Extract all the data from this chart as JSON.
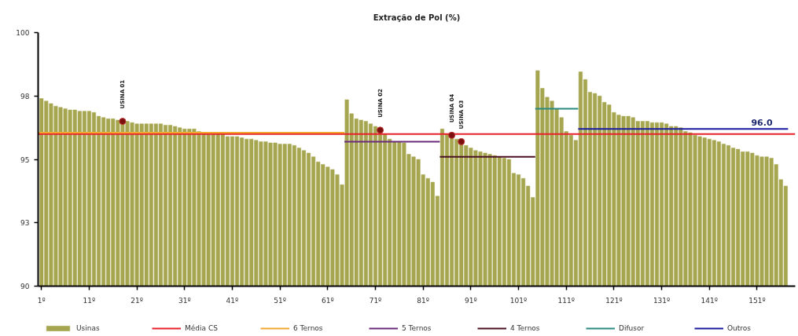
{
  "chart_data": {
    "type": "bar",
    "title": "Extração de Pol (%)",
    "x": [
      1,
      2,
      3,
      4,
      5,
      6,
      7,
      8,
      9,
      10,
      11,
      12,
      13,
      14,
      15,
      16,
      17,
      18,
      19,
      20,
      21,
      22,
      23,
      24,
      25,
      26,
      27,
      28,
      29,
      30,
      31,
      32,
      33,
      34,
      35,
      36,
      37,
      38,
      39,
      40,
      41,
      42,
      43,
      44,
      45,
      46,
      47,
      48,
      49,
      50,
      51,
      52,
      53,
      54,
      55,
      56,
      57,
      58,
      59,
      60,
      61,
      62,
      63,
      64,
      65,
      66,
      67,
      68,
      69,
      70,
      71,
      72,
      73,
      74,
      75,
      76,
      77,
      78,
      79,
      80,
      81,
      82,
      83,
      84,
      85,
      86,
      87,
      88,
      89,
      90,
      91,
      92,
      93,
      94,
      95,
      96,
      97,
      98,
      99,
      100,
      101,
      102,
      103,
      104,
      105,
      106,
      107,
      108,
      109,
      110,
      111,
      112,
      113,
      114,
      115,
      116,
      117,
      118,
      119,
      120,
      121,
      122,
      123,
      124,
      125,
      126,
      127,
      128,
      129,
      130,
      131,
      132,
      133,
      134,
      135,
      136,
      137,
      138,
      139,
      140,
      141,
      142,
      143,
      144,
      145,
      146,
      147,
      148,
      149,
      150,
      151,
      152,
      153,
      154,
      155,
      156,
      157
    ],
    "xlim": [
      0.3,
      159
    ],
    "xticks": [
      {
        "value": 1,
        "label": "1º"
      },
      {
        "value": 11,
        "label": "11º"
      },
      {
        "value": 21,
        "label": "21º"
      },
      {
        "value": 31,
        "label": "31º"
      },
      {
        "value": 41,
        "label": "41º"
      },
      {
        "value": 51,
        "label": "51º"
      },
      {
        "value": 61,
        "label": "61º"
      },
      {
        "value": 71,
        "label": "71º"
      },
      {
        "value": 81,
        "label": "81º"
      },
      {
        "value": 91,
        "label": "91º"
      },
      {
        "value": 101,
        "label": "101º"
      },
      {
        "value": 111,
        "label": "111º"
      },
      {
        "value": 121,
        "label": "121º"
      },
      {
        "value": 131,
        "label": "131º"
      },
      {
        "value": 141,
        "label": "141º"
      },
      {
        "value": 151,
        "label": "151º"
      }
    ],
    "ylim": [
      90,
      100
    ],
    "yticks": [
      90,
      {
        "value": 92.5,
        "label": "93"
      },
      95,
      {
        "value": 97.5,
        "label": "98"
      },
      100
    ],
    "legend": "bottom",
    "series": [
      {
        "name": "Usinas",
        "color": "#a6a650",
        "values": [
          97.4,
          97.3,
          97.2,
          97.1,
          97.05,
          97.0,
          96.95,
          96.95,
          96.9,
          96.9,
          96.9,
          96.85,
          96.7,
          96.65,
          96.6,
          96.6,
          96.55,
          96.5,
          96.5,
          96.45,
          96.4,
          96.4,
          96.4,
          96.4,
          96.4,
          96.4,
          96.35,
          96.35,
          96.3,
          96.25,
          96.2,
          96.2,
          96.2,
          96.1,
          96.05,
          96.05,
          96.0,
          96.0,
          96.0,
          95.9,
          95.9,
          95.9,
          95.85,
          95.8,
          95.8,
          95.75,
          95.7,
          95.7,
          95.65,
          95.65,
          95.6,
          95.6,
          95.6,
          95.55,
          95.45,
          95.35,
          95.25,
          95.1,
          94.9,
          94.8,
          94.7,
          94.6,
          94.4,
          94.0,
          97.35,
          96.8,
          96.6,
          96.55,
          96.5,
          96.4,
          96.3,
          96.15,
          96.0,
          95.8,
          95.7,
          95.7,
          95.65,
          95.2,
          95.1,
          95.0,
          94.4,
          94.25,
          94.1,
          93.55,
          96.2,
          96.0,
          95.95,
          95.8,
          95.7,
          95.55,
          95.45,
          95.35,
          95.3,
          95.25,
          95.2,
          95.15,
          95.1,
          95.05,
          95.0,
          94.45,
          94.4,
          94.25,
          93.95,
          93.5,
          98.5,
          97.8,
          97.45,
          97.3,
          97.0,
          96.65,
          96.1,
          95.95,
          95.75,
          98.45,
          98.15,
          97.65,
          97.6,
          97.5,
          97.25,
          97.15,
          96.85,
          96.75,
          96.7,
          96.7,
          96.65,
          96.5,
          96.5,
          96.5,
          96.45,
          96.45,
          96.45,
          96.4,
          96.3,
          96.3,
          96.25,
          96.1,
          96.05,
          95.95,
          95.9,
          95.85,
          95.8,
          95.75,
          95.7,
          95.6,
          95.55,
          95.45,
          95.4,
          95.3,
          95.3,
          95.25,
          95.15,
          95.1,
          95.1,
          95.05,
          94.8,
          94.2,
          93.95
        ]
      },
      {
        "name": "Média CS",
        "type": "line",
        "color": "#e8202a",
        "x": [
          0.3,
          152,
          159
        ],
        "values": [
          96.0,
          96.0,
          96.0
        ],
        "value_labels": [
          null,
          "96.0",
          null
        ]
      },
      {
        "name": "6 Ternos",
        "type": "line",
        "color": "#f0a830",
        "x": [
          0.3,
          64.5
        ],
        "values": [
          96.05,
          96.05
        ]
      },
      {
        "name": "5 Ternos",
        "type": "line",
        "color": "#6a2c7a",
        "x": [
          64.5,
          84.5
        ],
        "values": [
          95.7,
          95.7
        ]
      },
      {
        "name": "4 Ternos",
        "type": "line",
        "color": "#4a1020",
        "x": [
          84.5,
          104.5
        ],
        "values": [
          95.1,
          95.1
        ]
      },
      {
        "name": "Difusor",
        "type": "line",
        "color": "#2a8a80",
        "x": [
          104.5,
          113.5
        ],
        "values": [
          97.0,
          97.0
        ]
      },
      {
        "name": "Outros",
        "type": "line",
        "color": "#1a1aa0",
        "x": [
          113.5,
          157.5
        ],
        "values": [
          96.2,
          96.2
        ]
      },
      {
        "type": "scatter",
        "color": "#7a1010",
        "marker": "circle",
        "x": [
          18,
          72,
          87,
          89
        ],
        "values": [
          96.5,
          96.15,
          95.95,
          95.7
        ]
      }
    ],
    "annotations": [
      {
        "text": "USINA 01",
        "x": 18,
        "y": 96.5
      },
      {
        "text": "USINA 02",
        "x": 72,
        "y": 96.15
      },
      {
        "text": "USINA 04",
        "x": 87,
        "y": 95.95
      },
      {
        "text": "USINA 03",
        "x": 89,
        "y": 95.7
      }
    ]
  }
}
